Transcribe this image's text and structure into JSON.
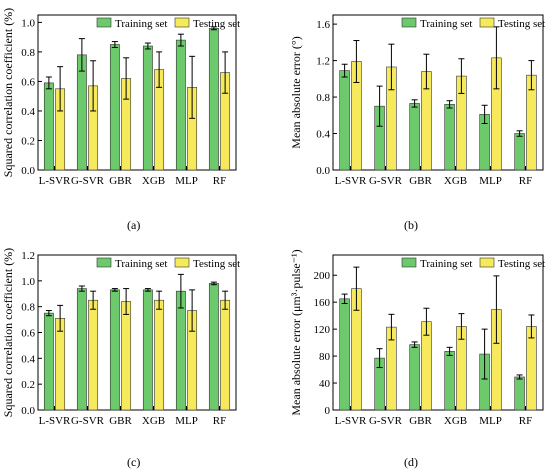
{
  "legend": {
    "train_label": "Training set",
    "test_label": "Testing set"
  },
  "colors": {
    "train": "#6cc96c",
    "test": "#f6ea5c",
    "axis": "#000000"
  },
  "panel_labels": [
    "(a)",
    "(b)",
    "(c)",
    "(d)"
  ],
  "chart_data": [
    {
      "type": "bar",
      "categories": [
        "L-SVR",
        "G-SVR",
        "GBR",
        "XGB",
        "MLP",
        "RF"
      ],
      "ylabel": "Squared correlation coefficient (%)",
      "ylim": [
        0.0,
        1.05
      ],
      "yticks": [
        0.0,
        0.2,
        0.4,
        0.6,
        0.8,
        1.0
      ],
      "ytick_labels": [
        "0.0",
        "0.2",
        "0.4",
        "0.6",
        "0.8",
        "1.0"
      ],
      "legend_position": "top-right",
      "series": [
        {
          "name": "Training set",
          "values": [
            0.59,
            0.78,
            0.85,
            0.84,
            0.88,
            0.96
          ],
          "errors": [
            0.04,
            0.11,
            0.02,
            0.02,
            0.04,
            0.01
          ]
        },
        {
          "name": "Testing set",
          "values": [
            0.55,
            0.57,
            0.62,
            0.68,
            0.56,
            0.66
          ],
          "errors": [
            0.15,
            0.17,
            0.14,
            0.12,
            0.21,
            0.14
          ]
        }
      ]
    },
    {
      "type": "bar",
      "categories": [
        "L-SVR",
        "G-SVR",
        "GBR",
        "XGB",
        "MLP",
        "RF"
      ],
      "ylabel": "Mean absolute error (°)",
      "ylim": [
        0.0,
        1.7
      ],
      "yticks": [
        0.0,
        0.4,
        0.8,
        1.2,
        1.6
      ],
      "ytick_labels": [
        "0.0",
        "0.4",
        "0.8",
        "1.2",
        "1.6"
      ],
      "legend_position": "top-right",
      "series": [
        {
          "name": "Training set",
          "values": [
            1.09,
            0.7,
            0.73,
            0.72,
            0.61,
            0.4
          ],
          "errors": [
            0.07,
            0.22,
            0.04,
            0.04,
            0.1,
            0.03
          ]
        },
        {
          "name": "Testing set",
          "values": [
            1.19,
            1.13,
            1.08,
            1.03,
            1.23,
            1.04
          ],
          "errors": [
            0.23,
            0.25,
            0.19,
            0.19,
            0.34,
            0.16
          ]
        }
      ]
    },
    {
      "type": "bar",
      "categories": [
        "L-SVR",
        "G-SVR",
        "GBR",
        "XGB",
        "MLP",
        "RF"
      ],
      "ylabel": "Squared correlation coefficient (%)",
      "ylim": [
        0.0,
        1.2
      ],
      "yticks": [
        0.0,
        0.2,
        0.4,
        0.6,
        0.8,
        1.0,
        1.2
      ],
      "ytick_labels": [
        "0.0",
        "0.2",
        "0.4",
        "0.6",
        "0.8",
        "1.0",
        "1.2"
      ],
      "legend_position": "top-right",
      "series": [
        {
          "name": "Training set",
          "values": [
            0.75,
            0.94,
            0.93,
            0.93,
            0.92,
            0.98
          ],
          "errors": [
            0.02,
            0.02,
            0.01,
            0.01,
            0.13,
            0.01
          ]
        },
        {
          "name": "Testing set",
          "values": [
            0.71,
            0.85,
            0.84,
            0.85,
            0.77,
            0.85
          ],
          "errors": [
            0.1,
            0.07,
            0.1,
            0.07,
            0.16,
            0.07
          ]
        }
      ]
    },
    {
      "type": "bar",
      "categories": [
        "L-SVR",
        "G-SVR",
        "GBR",
        "XGB",
        "MLP",
        "RF"
      ],
      "ylabel": "Mean absolute error (μm³·pulse⁻¹)",
      "ylim": [
        0,
        230
      ],
      "yticks": [
        0,
        40,
        80,
        120,
        160,
        200
      ],
      "ytick_labels": [
        "0",
        "40",
        "80",
        "120",
        "160",
        "200"
      ],
      "legend_position": "top-right",
      "series": [
        {
          "name": "Training set",
          "values": [
            165,
            77,
            97,
            87,
            83,
            49
          ],
          "errors": [
            7,
            14,
            4,
            6,
            37,
            3
          ]
        },
        {
          "name": "Testing set",
          "values": [
            180,
            123,
            131,
            124,
            149,
            124
          ],
          "errors": [
            32,
            19,
            20,
            19,
            50,
            17
          ]
        }
      ]
    }
  ]
}
